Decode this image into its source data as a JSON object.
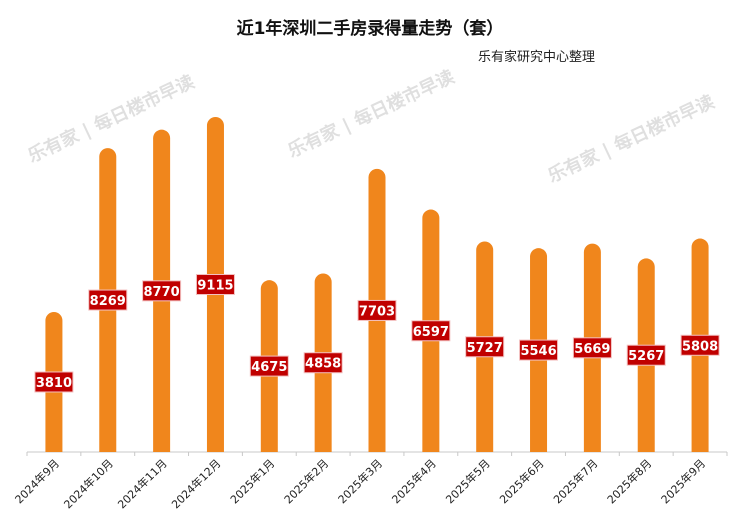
{
  "chart_data": {
    "type": "bar",
    "title": "近1年深圳二手房录得量走势（套）",
    "subtitle": "乐有家研究中心整理",
    "categories": [
      "2024年9月",
      "2024年10月",
      "2024年11月",
      "2024年12月",
      "2025年1月",
      "2025年2月",
      "2025年3月",
      "2025年4月",
      "2025年5月",
      "2025年6月",
      "2025年7月",
      "2025年8月",
      "2025年9月"
    ],
    "values": [
      3810,
      8269,
      8770,
      9115,
      4675,
      4858,
      7703,
      6597,
      5727,
      5546,
      5669,
      5267,
      5808
    ],
    "xlabel": "",
    "ylabel": "",
    "ylim": [
      0,
      9500
    ],
    "grid": false,
    "bar_color": "#F0861C",
    "label_bg": "#C00000",
    "watermark": "乐有家 | 每日楼市早读"
  }
}
